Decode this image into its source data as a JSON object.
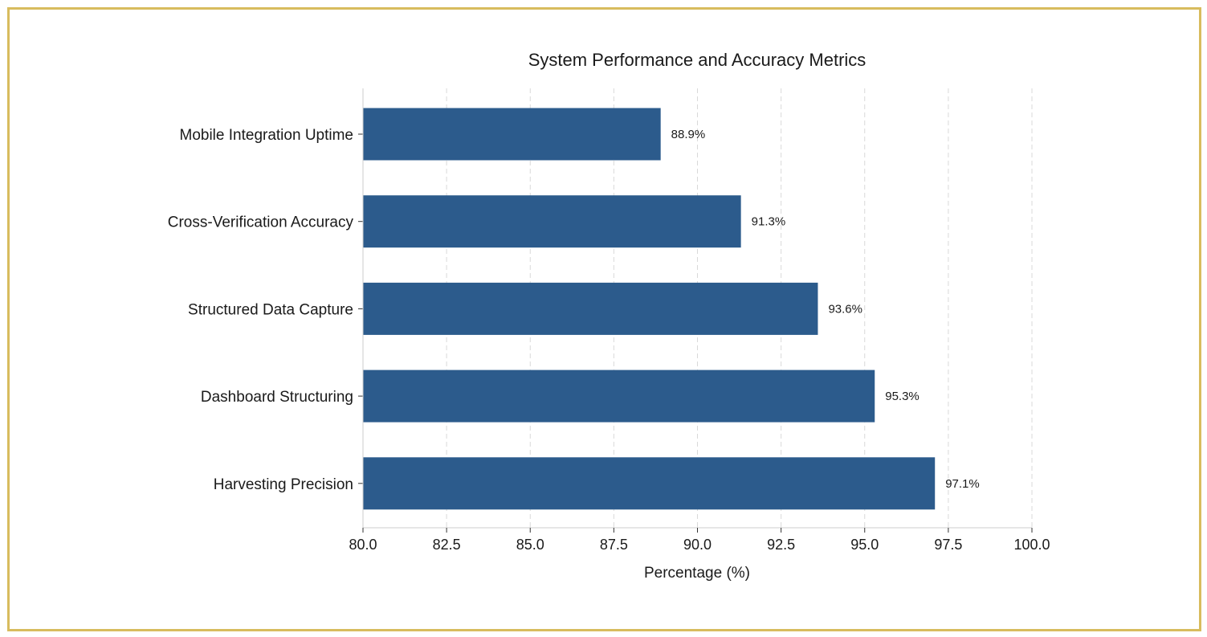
{
  "chart_data": {
    "type": "bar",
    "orientation": "horizontal",
    "title": "System Performance and Accuracy Metrics",
    "xlabel": "Percentage (%)",
    "ylabel": "",
    "categories": [
      "Mobile Integration Uptime",
      "Cross-Verification Accuracy",
      "Structured Data Capture",
      "Dashboard Structuring",
      "Harvesting Precision"
    ],
    "values": [
      88.9,
      91.3,
      93.6,
      95.3,
      97.1
    ],
    "data_labels": [
      "88.9%",
      "91.3%",
      "93.6%",
      "95.3%",
      "97.1%"
    ],
    "xlim": [
      80.0,
      100.0
    ],
    "xticks": [
      80.0,
      82.5,
      85.0,
      87.5,
      90.0,
      92.5,
      95.0,
      97.5,
      100.0
    ],
    "xtick_labels": [
      "80.0",
      "82.5",
      "85.0",
      "87.5",
      "90.0",
      "92.5",
      "95.0",
      "97.5",
      "100.0"
    ],
    "grid": "x-dashed",
    "bar_color": "#2c5b8c",
    "border_color": "#d8bc5e"
  }
}
